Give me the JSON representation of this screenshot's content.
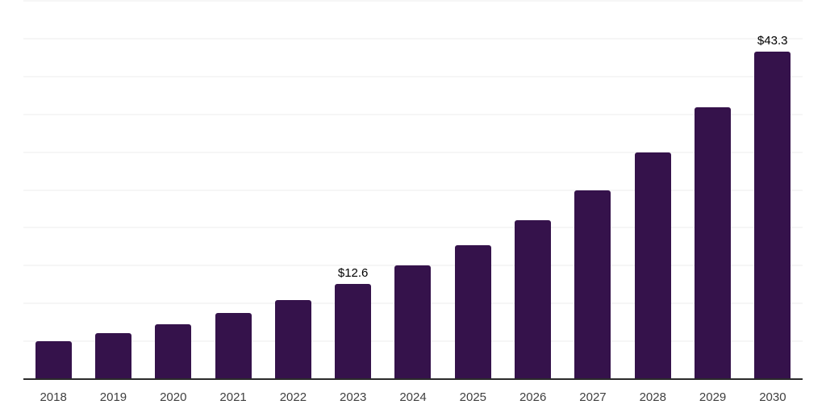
{
  "chart_data": {
    "type": "bar",
    "title": "",
    "xlabel": "",
    "ylabel": "",
    "categories": [
      "2018",
      "2019",
      "2020",
      "2021",
      "2022",
      "2023",
      "2024",
      "2025",
      "2026",
      "2027",
      "2028",
      "2029",
      "2030"
    ],
    "values": [
      5.0,
      6.1,
      7.3,
      8.7,
      10.5,
      12.6,
      15.0,
      17.7,
      21.0,
      25.0,
      30.0,
      35.9,
      43.3
    ],
    "labeled_points": [
      {
        "category": "2023",
        "label": "$12.6"
      },
      {
        "category": "2030",
        "label": "$43.3"
      }
    ],
    "ylim": [
      0,
      50
    ],
    "grid_step": 5,
    "grid": true,
    "legend": false,
    "y_tick_labels_visible": false,
    "colors": {
      "bar": "#35124B",
      "gridline": "#ededed",
      "axis_line": "#2b2b2b",
      "value_label": "#000000",
      "x_tick_label": "#404040",
      "background": "#ffffff"
    }
  }
}
